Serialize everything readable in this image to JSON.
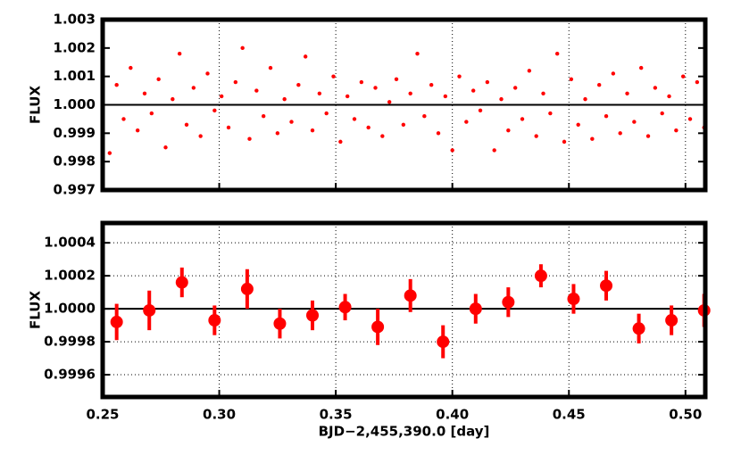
{
  "chart_data": [
    {
      "type": "scatter",
      "ylabel": "FLUX",
      "color": "#ff0000",
      "grid": "x",
      "reference_line": 1,
      "xlim": [
        0.25,
        0.5085
      ],
      "ylim": [
        0.997,
        1.003
      ],
      "xticks": [
        0.25,
        0.3,
        0.35,
        0.4,
        0.45,
        0.5
      ],
      "yticks": [
        0.997,
        0.998,
        0.999,
        {
          "value": 1,
          "label": "1.000"
        },
        1.001,
        1.002,
        1.003
      ],
      "x": [
        0.253,
        0.256,
        0.259,
        0.262,
        0.265,
        0.268,
        0.271,
        0.274,
        0.277,
        0.28,
        0.283,
        0.286,
        0.289,
        0.292,
        0.295,
        0.298,
        0.301,
        0.304,
        0.307,
        0.31,
        0.313,
        0.316,
        0.319,
        0.322,
        0.325,
        0.328,
        0.331,
        0.334,
        0.337,
        0.34,
        0.343,
        0.346,
        0.349,
        0.352,
        0.355,
        0.358,
        0.361,
        0.364,
        0.367,
        0.37,
        0.373,
        0.376,
        0.379,
        0.382,
        0.385,
        0.388,
        0.391,
        0.394,
        0.397,
        0.4,
        0.403,
        0.406,
        0.409,
        0.412,
        0.415,
        0.418,
        0.421,
        0.424,
        0.427,
        0.43,
        0.433,
        0.436,
        0.439,
        0.442,
        0.445,
        0.448,
        0.451,
        0.454,
        0.457,
        0.46,
        0.463,
        0.466,
        0.469,
        0.472,
        0.475,
        0.478,
        0.481,
        0.484,
        0.487,
        0.49,
        0.493,
        0.496,
        0.499,
        0.502,
        0.505,
        0.508
      ],
      "values": [
        0.9983,
        1.0007,
        0.9995,
        1.0013,
        0.9991,
        1.0004,
        0.9997,
        1.0009,
        0.9985,
        1.0002,
        1.0018,
        0.9993,
        1.0006,
        0.9989,
        1.0011,
        0.9998,
        1.0003,
        0.9992,
        1.0008,
        1.002,
        0.9988,
        1.0005,
        0.9996,
        1.0013,
        0.999,
        1.0002,
        0.9994,
        1.0007,
        1.0017,
        0.9991,
        1.0004,
        0.9997,
        1.001,
        0.9987,
        1.0003,
        0.9995,
        1.0008,
        0.9992,
        1.0006,
        0.9989,
        1.0001,
        1.0009,
        0.9993,
        1.0004,
        1.0018,
        0.9996,
        1.0007,
        0.999,
        1.0003,
        0.9984,
        1.001,
        0.9994,
        1.0005,
        0.9998,
        1.0008,
        0.9984,
        1.0002,
        0.9991,
        1.0006,
        0.9995,
        1.0012,
        0.9989,
        1.0004,
        0.9997,
        1.0018,
        0.9987,
        1.0009,
        0.9993,
        1.0002,
        0.9988,
        1.0007,
        0.9996,
        1.0011,
        0.999,
        1.0004,
        0.9994,
        1.0013,
        0.9989,
        1.0006,
        0.9997,
        1.0003,
        0.9991,
        1.001,
        0.9995,
        1.0008,
        0.9992
      ]
    },
    {
      "type": "errorbar",
      "ylabel": "FLUX",
      "xlabel": "BJD−2,455,390.0 [day]",
      "color": "#ff0000",
      "grid": "both",
      "reference_line": 1,
      "xlim": [
        0.25,
        0.5085
      ],
      "ylim": [
        0.999465,
        1.00052
      ],
      "xticks": [
        0.25,
        {
          "value": 0.3,
          "label": "0.30"
        },
        0.35,
        {
          "value": 0.4,
          "label": "0.40"
        },
        0.45,
        {
          "value": 0.5,
          "label": "0.50"
        }
      ],
      "yticks": [
        0.9996,
        0.9998,
        {
          "value": 1,
          "label": "1.0000"
        },
        1.0002,
        1.0004
      ],
      "x": [
        0.256,
        0.27,
        0.284,
        0.298,
        0.312,
        0.326,
        0.34,
        0.354,
        0.368,
        0.382,
        0.396,
        0.41,
        0.424,
        0.438,
        0.452,
        0.466,
        0.48,
        0.494,
        0.508
      ],
      "values": [
        0.99992,
        0.99999,
        1.00016,
        0.99993,
        1.00012,
        0.99991,
        0.99996,
        1.00001,
        0.99989,
        1.00008,
        0.9998,
        1,
        1.00004,
        1.0002,
        1.00006,
        1.00014,
        0.99988,
        0.99993,
        0.99999
      ],
      "errors": [
        0.00011,
        0.00012,
        9e-05,
        9e-05,
        0.00012,
        9e-05,
        9e-05,
        8e-05,
        0.00011,
        0.0001,
        0.0001,
        9e-05,
        9e-05,
        7e-05,
        9e-05,
        9e-05,
        9e-05,
        9e-05,
        0.0001
      ]
    }
  ]
}
